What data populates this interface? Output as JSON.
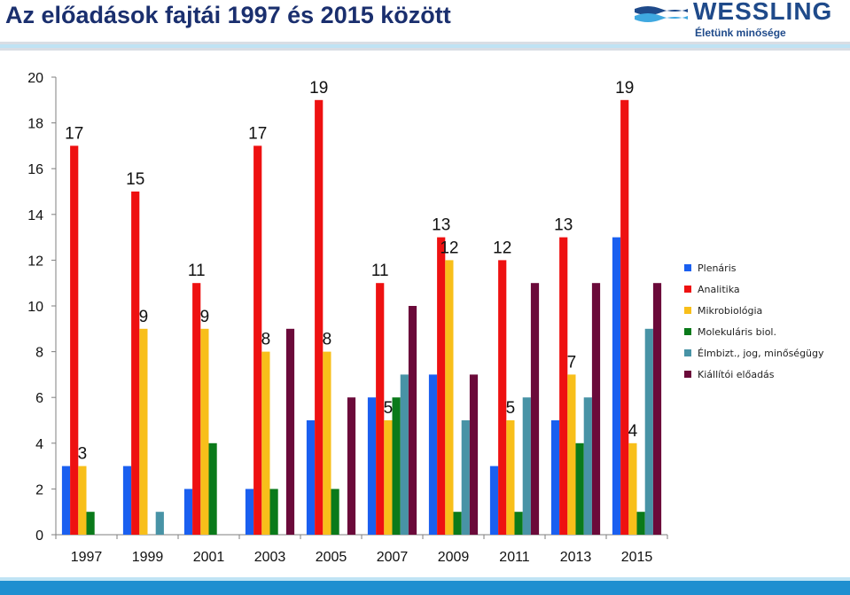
{
  "page": {
    "title": "Az előadások fajtái 1997 és 2015 között",
    "logo": {
      "name": "WESSLING",
      "tagline": "Életünk minősége"
    }
  },
  "colors": {
    "Plenáris": "#1a5ff0",
    "Analitika": "#ee1111",
    "Mikrobiológia": "#f8bf1a",
    "Molekuláris biol.": "#0a7a1a",
    "Élmbizt., jog, minőségügy": "#4893a6",
    "Kiállítói előadás": "#6b0a3a"
  },
  "chart_data": {
    "type": "bar",
    "title": "",
    "xlabel": "",
    "ylabel": "",
    "ylim": [
      0,
      20
    ],
    "yticks": [
      0,
      2,
      4,
      6,
      8,
      10,
      12,
      14,
      16,
      18,
      20
    ],
    "grid": false,
    "legend": "right",
    "categories": [
      "1997",
      "1999",
      "2001",
      "2003",
      "2005",
      "2007",
      "2009",
      "2011",
      "2013",
      "2015"
    ],
    "series": [
      {
        "name": "Plenáris",
        "values": [
          3,
          3,
          2,
          2,
          5,
          6,
          7,
          3,
          5,
          13
        ]
      },
      {
        "name": "Analitika",
        "values": [
          17,
          15,
          11,
          17,
          19,
          11,
          13,
          12,
          13,
          19
        ]
      },
      {
        "name": "Mikrobiológia",
        "values": [
          3,
          9,
          9,
          8,
          8,
          5,
          12,
          5,
          7,
          4
        ]
      },
      {
        "name": "Molekuláris biol.",
        "values": [
          1,
          0,
          4,
          2,
          2,
          6,
          1,
          1,
          4,
          1
        ]
      },
      {
        "name": "Élmbizt., jog, minőségügy",
        "values": [
          0,
          1,
          0,
          0,
          0,
          7,
          5,
          6,
          6,
          9
        ]
      },
      {
        "name": "Kiállítói előadás",
        "values": [
          0,
          0,
          0,
          9,
          6,
          10,
          7,
          11,
          11,
          11
        ]
      }
    ],
    "data_labels": [
      {
        "category": "1997",
        "series": "Analitika",
        "text": "17"
      },
      {
        "category": "1997",
        "series": "Mikrobiológia",
        "text": "3"
      },
      {
        "category": "1999",
        "series": "Analitika",
        "text": "15"
      },
      {
        "category": "1999",
        "series": "Mikrobiológia",
        "text": "9"
      },
      {
        "category": "2001",
        "series": "Analitika",
        "text": "11"
      },
      {
        "category": "2001",
        "series": "Mikrobiológia",
        "text": "9"
      },
      {
        "category": "2003",
        "series": "Analitika",
        "text": "17"
      },
      {
        "category": "2003",
        "series": "Mikrobiológia",
        "text": "8"
      },
      {
        "category": "2005",
        "series": "Analitika",
        "text": "19"
      },
      {
        "category": "2005",
        "series": "Mikrobiológia",
        "text": "8"
      },
      {
        "category": "2007",
        "series": "Analitika",
        "text": "11"
      },
      {
        "category": "2007",
        "series": "Mikrobiológia",
        "text": "5"
      },
      {
        "category": "2009",
        "series": "Analitika",
        "text": "13"
      },
      {
        "category": "2009",
        "series": "Mikrobiológia",
        "text": "12"
      },
      {
        "category": "2011",
        "series": "Analitika",
        "text": "12"
      },
      {
        "category": "2011",
        "series": "Mikrobiológia",
        "text": "5"
      },
      {
        "category": "2013",
        "series": "Analitika",
        "text": "13"
      },
      {
        "category": "2013",
        "series": "Mikrobiológia",
        "text": "7"
      },
      {
        "category": "2015",
        "series": "Analitika",
        "text": "19"
      },
      {
        "category": "2015",
        "series": "Mikrobiológia",
        "text": "4"
      }
    ]
  }
}
